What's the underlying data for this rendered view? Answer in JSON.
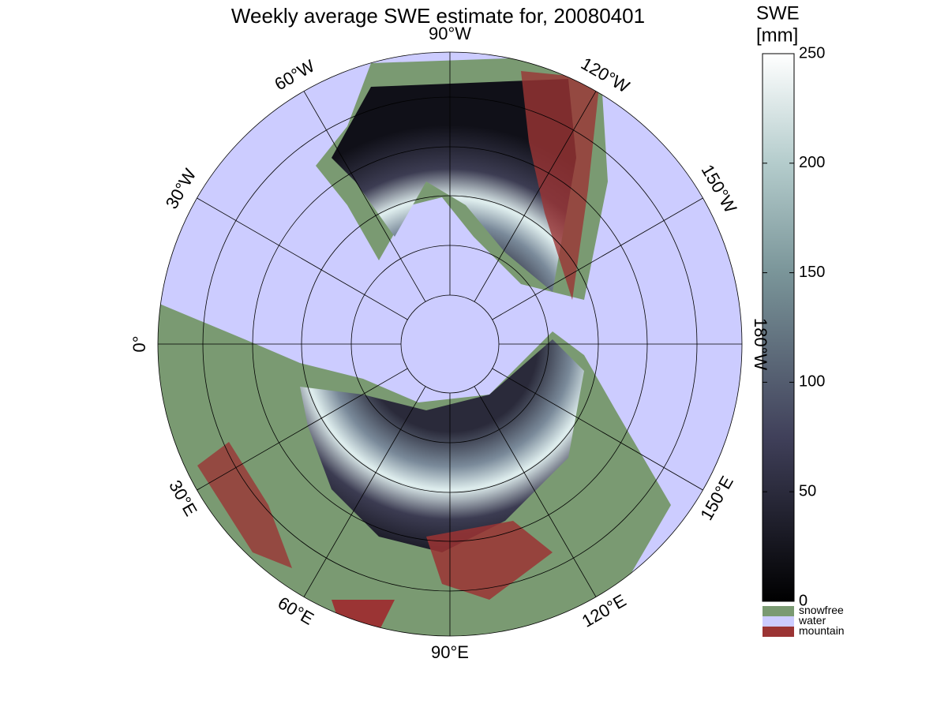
{
  "title": "Weekly average SWE estimate for, 20080401",
  "meridian_labels": [
    "0°",
    "30°W",
    "60°W",
    "90°W",
    "120°W",
    "150°W",
    "180°W",
    "150°E",
    "120°E",
    "90°E",
    "60°E",
    "30°E"
  ],
  "colorbar": {
    "title": "SWE",
    "unit": "[mm]",
    "lim": [
      0,
      250
    ],
    "ticks": [
      0,
      50,
      100,
      150,
      200,
      250
    ]
  },
  "legend": [
    {
      "label": "snowfree",
      "color": "#7a9a72"
    },
    {
      "label": "water",
      "color": "#ccccff"
    },
    {
      "label": "mountain",
      "color": "#9b3434"
    }
  ]
}
